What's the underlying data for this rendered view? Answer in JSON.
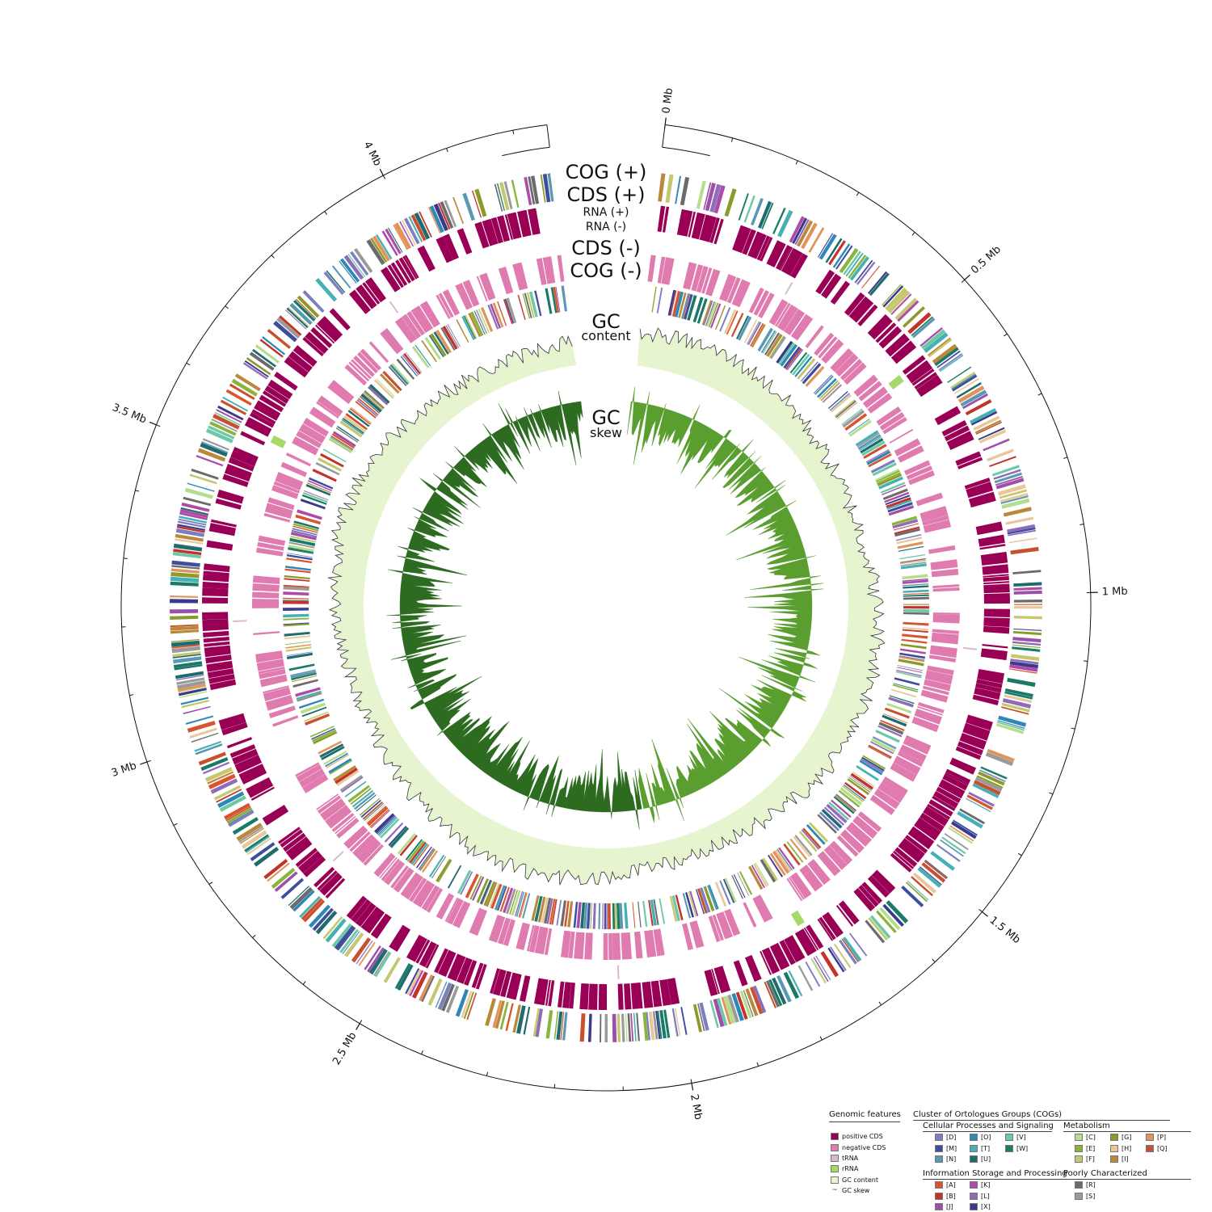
{
  "map": {
    "ring_labels": {
      "cog_plus": "COG (+)",
      "cds_plus": "CDS (+)",
      "rna_plus": "RNA (+)",
      "rna_minus": "RNA (-)",
      "cds_minus": "CDS (-)",
      "cog_minus": "COG (-)",
      "gc_content_1": "GC",
      "gc_content_2": "content",
      "gc_skew_1": "GC",
      "gc_skew_2": "skew"
    },
    "genome_size_mb": 4.25,
    "ticks": [
      {
        "mb": 0,
        "label": "0 Mb"
      },
      {
        "mb": 0.5,
        "label": "0.5 Mb"
      },
      {
        "mb": 1,
        "label": "1 Mb"
      },
      {
        "mb": 1.5,
        "label": "1.5 Mb"
      },
      {
        "mb": 2,
        "label": "2 Mb"
      },
      {
        "mb": 2.5,
        "label": "2.5 Mb"
      },
      {
        "mb": 3,
        "label": "3 Mb"
      },
      {
        "mb": 3.5,
        "label": "3.5 Mb"
      },
      {
        "mb": 4,
        "label": "4 Mb"
      }
    ],
    "colors": {
      "positive_cds": "#990055",
      "negative_cds": "#e07bb0",
      "trna": "#d9b7d3",
      "rrna": "#a6d96a",
      "gc_content": "#e6f5d0",
      "gc_skew_pos": "#5a9e2f",
      "gc_skew_neg": "#2d6b21"
    }
  },
  "legend": {
    "genomic_title": "Genomic features",
    "genomic": [
      {
        "label": "positive CDS",
        "color": "#990055"
      },
      {
        "label": "negative CDS",
        "color": "#e07bb0"
      },
      {
        "label": "tRNA",
        "color": "#d9b7d3"
      },
      {
        "label": "rRNA",
        "color": "#a6d96a"
      },
      {
        "label": "GC content",
        "color": "#e6f5d0"
      },
      {
        "label": "GC skew",
        "color": ""
      }
    ],
    "cog_title": "Cluster of Ortologues Groups (COGs)",
    "groups": {
      "cellular": {
        "title": "Cellular Processes and Signaling",
        "items": [
          {
            "label": "[D]",
            "color": "#7b7fbf"
          },
          {
            "label": "[M]",
            "color": "#3e4e9c"
          },
          {
            "label": "[N]",
            "color": "#5a97b3"
          },
          {
            "label": "[O]",
            "color": "#2f87b5"
          },
          {
            "label": "[T]",
            "color": "#47b0b5"
          },
          {
            "label": "[U]",
            "color": "#1f6b6e"
          },
          {
            "label": "[V]",
            "color": "#6cc9a5"
          },
          {
            "label": "[W]",
            "color": "#1a7a66"
          }
        ]
      },
      "metabolism": {
        "title": "Metabolism",
        "items": [
          {
            "label": "[C]",
            "color": "#b5dd8a"
          },
          {
            "label": "[E]",
            "color": "#8ab43c"
          },
          {
            "label": "[F]",
            "color": "#c5c86e"
          },
          {
            "label": "[G]",
            "color": "#8c9a2a"
          },
          {
            "label": "[H]",
            "color": "#e9c79a"
          },
          {
            "label": "[I]",
            "color": "#b9883a"
          },
          {
            "label": "[P]",
            "color": "#e0935a"
          },
          {
            "label": "[Q]",
            "color": "#c8502e"
          }
        ]
      },
      "information": {
        "title": "Information Storage and Processing",
        "items": [
          {
            "label": "[A]",
            "color": "#d9542e"
          },
          {
            "label": "[B]",
            "color": "#c2332b"
          },
          {
            "label": "[J]",
            "color": "#9e4fa8"
          },
          {
            "label": "[K]",
            "color": "#b04aa8"
          },
          {
            "label": "[L]",
            "color": "#8f6cb8"
          },
          {
            "label": "[X]",
            "color": "#3a3a8a"
          }
        ]
      },
      "poorly": {
        "title": "Poorly Characterized",
        "items": [
          {
            "label": "[R]",
            "color": "#6b6b6b"
          },
          {
            "label": "[S]",
            "color": "#9a9a9a"
          }
        ]
      }
    }
  }
}
